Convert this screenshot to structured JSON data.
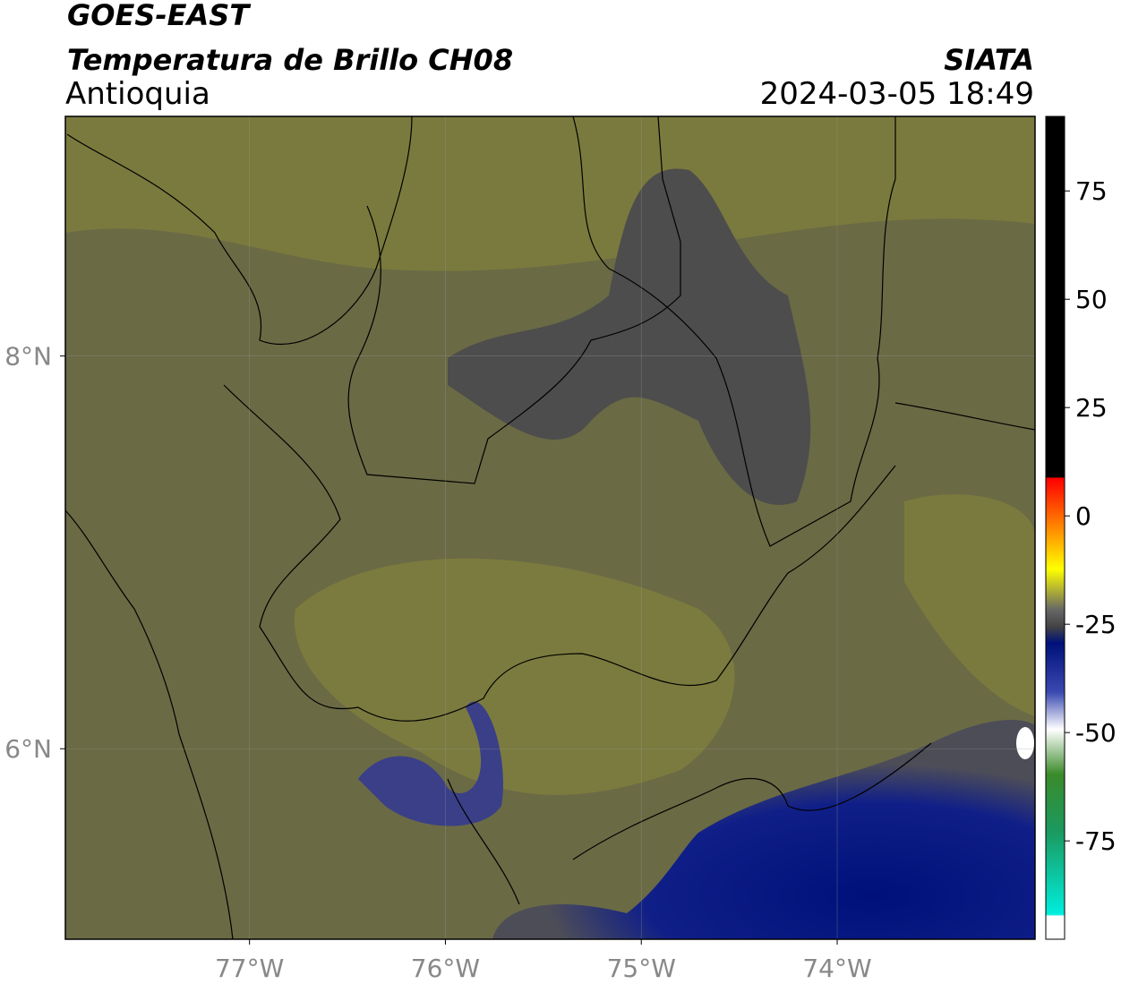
{
  "header": {
    "title": "GOES-EAST",
    "subtitle": "Temperatura de Brillo CH08",
    "region": "Antioquia",
    "source": "SIATA",
    "datetime": "2024-03-05 18:49"
  },
  "map": {
    "xlim": [
      -77.94,
      -72.99
    ],
    "ylim": [
      5.03,
      9.22
    ],
    "xticks": [
      {
        "value": -77,
        "label": "77°W"
      },
      {
        "value": -76,
        "label": "76°W"
      },
      {
        "value": -75,
        "label": "75°W"
      },
      {
        "value": -74,
        "label": "74°W"
      }
    ],
    "yticks": [
      {
        "value": 6,
        "label": "6°N"
      },
      {
        "value": 8,
        "label": "8°N"
      }
    ],
    "grid": true
  },
  "colorbar": {
    "lim": [
      -97.7,
      92.2
    ],
    "ticks": [
      -75,
      -50,
      -25,
      0,
      25,
      50,
      75
    ]
  }
}
